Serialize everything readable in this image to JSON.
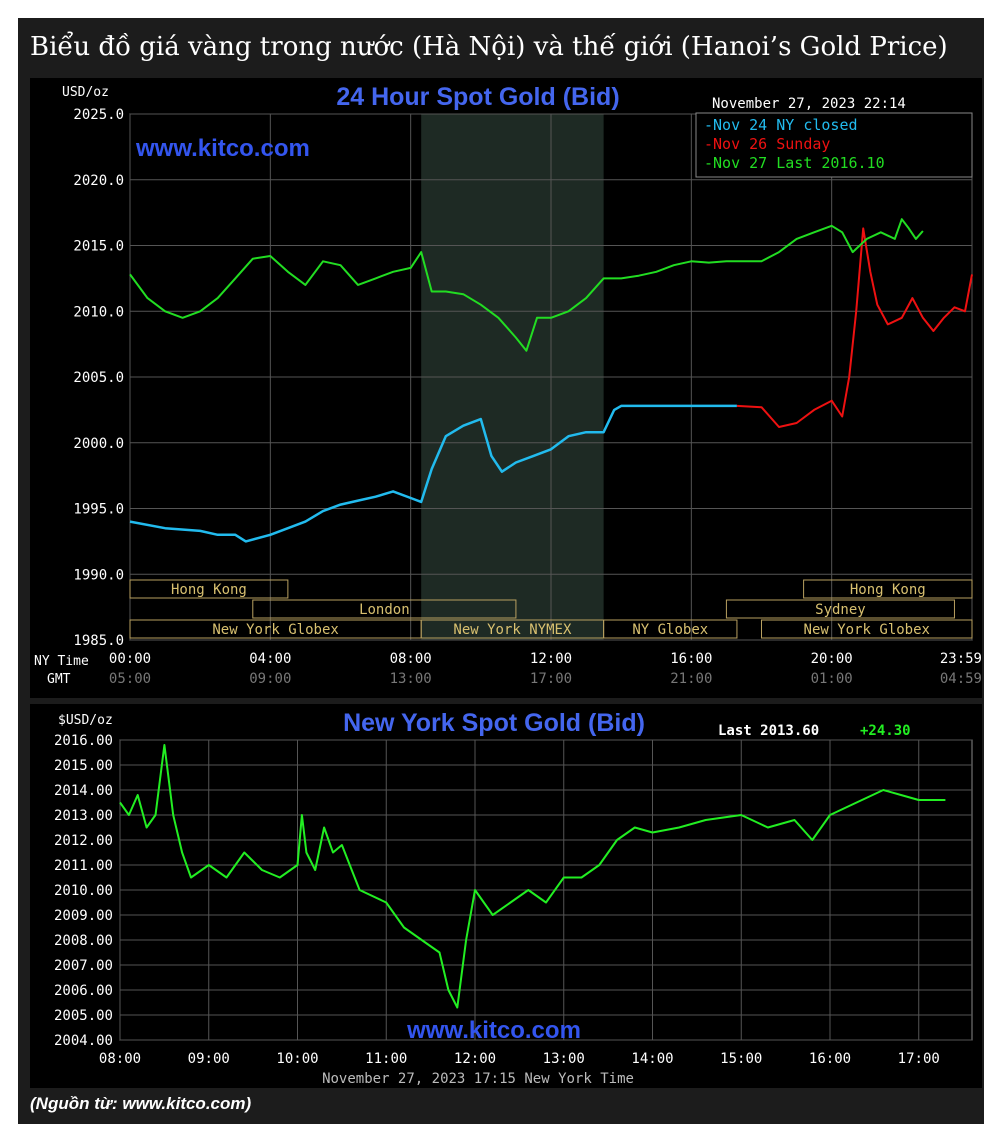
{
  "heading": "Biểu đồ giá vàng trong nước (Hà Nội) và thế giới (Hanoi’s Gold Price)",
  "source": "(Nguồn từ: www.kitco.com)",
  "colors": {
    "nov24": "#22bbee",
    "nov26": "#ee1111",
    "nov27": "#22dd22",
    "ny": "#22ee22",
    "title": "#4466ee"
  },
  "chart_data": [
    {
      "type": "line",
      "title": "24 Hour Spot Gold (Bid)",
      "ylabel": "USD/oz",
      "ylim": [
        1985,
        2025
      ],
      "y_ticks": [
        "2025.0",
        "2020.0",
        "2015.0",
        "2010.0",
        "2005.0",
        "2000.0",
        "1995.0",
        "1990.0",
        "1985.0"
      ],
      "xlim": [
        0,
        24
      ],
      "x_ticks_ny": [
        "00:00",
        "04:00",
        "08:00",
        "12:00",
        "16:00",
        "20:00",
        "23:59"
      ],
      "x_ticks_gmt": [
        "05:00",
        "09:00",
        "13:00",
        "17:00",
        "21:00",
        "01:00",
        "04:59"
      ],
      "x_axis_label_ny": "NY Time",
      "x_axis_label_gmt": "GMT",
      "timestamp": "November 27, 2023 22:14",
      "watermark": "www.kitco.com",
      "legend_position": "top-right",
      "sessions": [
        {
          "label": "Hong Kong",
          "start": 0,
          "end": 4.5,
          "row": 0
        },
        {
          "label": "London",
          "start": 3.5,
          "end": 11,
          "row": 1
        },
        {
          "label": "New York Globex",
          "start": 0,
          "end": 8.3,
          "row": 2
        },
        {
          "label": "New York NYMEX",
          "start": 8.3,
          "end": 13.5,
          "row": 2
        },
        {
          "label": "NY Globex",
          "start": 13.5,
          "end": 17.3,
          "row": 2
        },
        {
          "label": "Hong Kong",
          "start": 19.2,
          "end": 24,
          "row": 0
        },
        {
          "label": "Sydney",
          "start": 17,
          "end": 23.5,
          "row": 1
        },
        {
          "label": "New York Globex",
          "start": 18,
          "end": 24,
          "row": 2
        }
      ],
      "shaded_range": [
        8.3,
        13.5
      ],
      "series": [
        {
          "name": "Nov 24 NY closed",
          "color": "#22bbee",
          "x": [
            0,
            1,
            2,
            2.5,
            3,
            3.3,
            4,
            4.5,
            5,
            5.5,
            6,
            6.5,
            7,
            7.5,
            8,
            8.3,
            8.6,
            9,
            9.5,
            10,
            10.3,
            10.6,
            11,
            11.5,
            12,
            12.5,
            13,
            13.5,
            13.8,
            14,
            15,
            16,
            17.3
          ],
          "y": [
            1994,
            1993.5,
            1993.3,
            1993,
            1993,
            1992.5,
            1993,
            1993.5,
            1994,
            1994.8,
            1995.3,
            1995.6,
            1995.9,
            1996.3,
            1995.8,
            1995.5,
            1998,
            2000.5,
            2001.3,
            2001.8,
            1999,
            1997.8,
            1998.5,
            1999,
            1999.5,
            2000.5,
            2000.8,
            2000.8,
            2002.5,
            2002.8,
            2002.8,
            2002.8,
            2002.8
          ]
        },
        {
          "name": "Nov 26 Sunday",
          "color": "#ee1111",
          "x": [
            17.3,
            18,
            18.5,
            19,
            19.5,
            20,
            20.3,
            20.5,
            20.7,
            20.9,
            21.1,
            21.3,
            21.6,
            22,
            22.3,
            22.6,
            22.9,
            23.2,
            23.5,
            23.8,
            24
          ],
          "y": [
            2002.8,
            2002.7,
            2001.2,
            2001.5,
            2002.5,
            2003.2,
            2002,
            2005,
            2010,
            2016.3,
            2013,
            2010.5,
            2009,
            2009.5,
            2011,
            2009.5,
            2008.5,
            2009.5,
            2010.3,
            2010,
            2012.8
          ]
        },
        {
          "name": "Nov 27 Last 2016.10",
          "color": "#22dd22",
          "x": [
            0,
            0.5,
            1,
            1.5,
            2,
            2.5,
            3,
            3.5,
            4,
            4.5,
            5,
            5.5,
            6,
            6.5,
            7,
            7.5,
            8,
            8.3,
            8.6,
            9,
            9.5,
            10,
            10.5,
            11,
            11.3,
            11.6,
            12,
            12.5,
            13,
            13.5,
            14,
            14.5,
            15,
            15.5,
            16,
            16.5,
            17,
            17.5,
            18,
            18.5,
            19,
            19.5,
            20,
            20.3,
            20.6,
            21,
            21.4,
            21.8,
            22,
            22.2,
            22.4,
            22.6
          ],
          "y": [
            2012.8,
            2011,
            2010,
            2009.5,
            2010,
            2011,
            2012.5,
            2014,
            2014.2,
            2013,
            2012,
            2013.8,
            2013.5,
            2012,
            2012.5,
            2013,
            2013.3,
            2014.5,
            2011.5,
            2011.5,
            2011.3,
            2010.5,
            2009.5,
            2008,
            2007,
            2009.5,
            2009.5,
            2010,
            2011,
            2012.5,
            2012.5,
            2012.7,
            2013,
            2013.5,
            2013.8,
            2013.7,
            2013.8,
            2013.8,
            2013.8,
            2014.5,
            2015.5,
            2016,
            2016.5,
            2016,
            2014.5,
            2015.5,
            2016,
            2015.5,
            2017,
            2016.3,
            2015.5,
            2016.1
          ]
        }
      ]
    },
    {
      "type": "line",
      "title": "New York Spot Gold (Bid)",
      "ylabel": "$USD/oz",
      "ylim": [
        2004,
        2016
      ],
      "y_ticks": [
        "2016.00",
        "2015.00",
        "2014.00",
        "2013.00",
        "2012.00",
        "2011.00",
        "2010.00",
        "2009.00",
        "2008.00",
        "2007.00",
        "2006.00",
        "2005.00",
        "2004.00"
      ],
      "xlim": [
        8,
        17.6
      ],
      "x_ticks": [
        "08:00",
        "09:00",
        "10:00",
        "11:00",
        "12:00",
        "13:00",
        "14:00",
        "15:00",
        "16:00",
        "17:00"
      ],
      "footer": "November 27, 2023 17:15 New York Time",
      "watermark": "www.kitco.com",
      "last_label": "Last 2013.60",
      "change_label": "+24.30",
      "series": [
        {
          "name": "",
          "color": "#22ee22",
          "x": [
            8,
            8.1,
            8.2,
            8.3,
            8.4,
            8.5,
            8.6,
            8.7,
            8.8,
            9,
            9.2,
            9.4,
            9.6,
            9.8,
            10,
            10.05,
            10.1,
            10.2,
            10.3,
            10.4,
            10.5,
            10.7,
            11,
            11.2,
            11.4,
            11.6,
            11.7,
            11.8,
            11.9,
            12,
            12.2,
            12.4,
            12.6,
            12.8,
            13,
            13.2,
            13.4,
            13.6,
            13.8,
            14,
            14.3,
            14.6,
            15,
            15.3,
            15.6,
            15.8,
            16,
            16.3,
            16.6,
            16.8,
            17,
            17.3
          ],
          "y": [
            2013.5,
            2013,
            2013.8,
            2012.5,
            2013,
            2015.8,
            2013,
            2011.5,
            2010.5,
            2011,
            2010.5,
            2011.5,
            2010.8,
            2010.5,
            2011,
            2013,
            2011.5,
            2010.8,
            2012.5,
            2011.5,
            2011.8,
            2010,
            2009.5,
            2008.5,
            2008,
            2007.5,
            2006,
            2005.3,
            2008,
            2010,
            2009,
            2009.5,
            2010,
            2009.5,
            2010.5,
            2010.5,
            2011,
            2012,
            2012.5,
            2012.3,
            2012.5,
            2012.8,
            2013,
            2012.5,
            2012.8,
            2012,
            2013,
            2013.5,
            2014,
            2013.8,
            2013.6,
            2013.6
          ]
        }
      ]
    }
  ]
}
